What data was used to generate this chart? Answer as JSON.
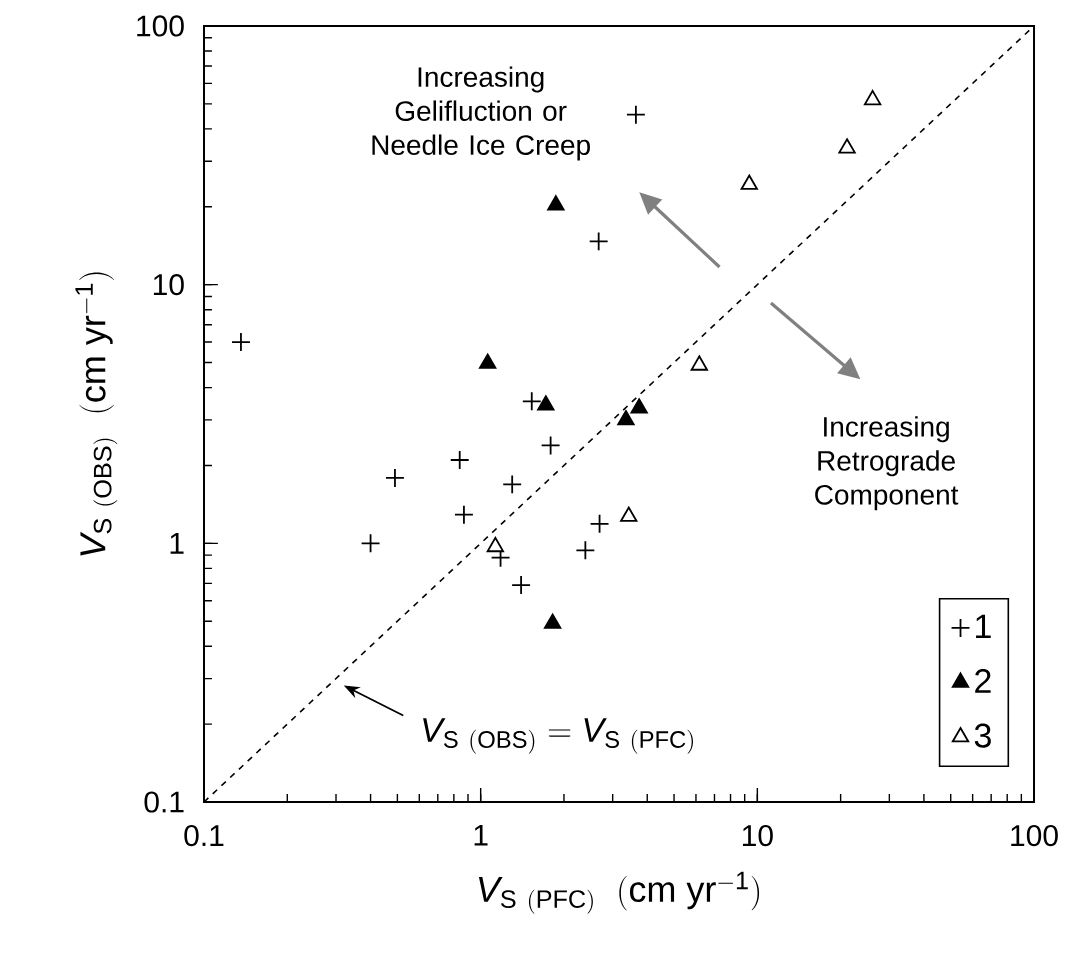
{
  "chart_data": {
    "type": "scatter",
    "xlabel": "V_{\\mathrm{S\\ (PFC)}}\\ \\ (\\mathrm{cm\\ yr}^{\\mathrm{-1}})",
    "ylabel": "V_{\\mathrm{S\\ (OBS)}}\\ \\ (\\mathrm{cm\\ yr}^{\\mathrm{-1}})",
    "log": "xy",
    "xlim": [
      0.1,
      100
    ],
    "ylim": [
      0.1,
      100
    ],
    "xticks": [
      0.1,
      1,
      10,
      100
    ],
    "yticks": [
      0.1,
      1,
      10,
      100
    ],
    "grid": false,
    "legend": "bottom right",
    "series": [
      {
        "name": "1",
        "color": "#000000",
        "marker": "cross",
        "x": [
          3.64,
          2.67,
          0.136,
          1.53,
          1.79,
          0.84,
          0.49,
          1.3,
          0.87,
          2.69,
          0.4,
          2.39,
          1.18,
          1.4
        ],
        "values": [
          45.4,
          14.7,
          6.0,
          3.54,
          2.39,
          2.1,
          1.79,
          1.69,
          1.29,
          1.19,
          1.0,
          0.94,
          0.88,
          0.69
        ]
      },
      {
        "name": "2",
        "color": "#000000",
        "marker": "triangle",
        "x": [
          1.87,
          1.06,
          1.72,
          3.35,
          3.74,
          1.82
        ],
        "values": [
          20.3,
          4.96,
          3.42,
          3.0,
          3.33,
          0.49
        ]
      },
      {
        "name": "3",
        "color": "#ffffff",
        "marker": "triangle",
        "x": [
          26.1,
          21.1,
          9.35,
          6.17,
          3.43,
          1.13
        ],
        "values": [
          51.8,
          33.7,
          24.4,
          4.88,
          1.27,
          0.97
        ]
      },
      {
        "type": "line",
        "color": "#000000",
        "line_style": "dashed",
        "marker": "none",
        "x": [
          0.1,
          100
        ],
        "values": [
          0.1,
          100
        ]
      }
    ],
    "annotations": [
      "Increasing Gelifluction or Needle Ice Creep",
      "Increasing Retrograde Component",
      "V_{\\mathrm{S\\ (OBS)}} = V_{\\mathrm{S\\ (PFC)}}"
    ]
  }
}
